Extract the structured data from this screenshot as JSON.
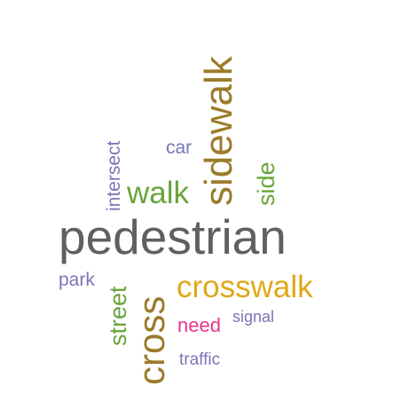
{
  "words": {
    "pedestrian": {
      "text": "pedestrian",
      "color": "#5f6064"
    },
    "sidewalk": {
      "text": "sidewalk",
      "color": "#9b7b2a"
    },
    "crosswalk": {
      "text": "crosswalk",
      "color": "#e0a818"
    },
    "cross": {
      "text": "cross",
      "color": "#9b7b2a"
    },
    "walk": {
      "text": "walk",
      "color": "#68a43a"
    },
    "street": {
      "text": "street",
      "color": "#68a43a"
    },
    "side": {
      "text": "side",
      "color": "#68a43a"
    },
    "intersect": {
      "text": "intersect",
      "color": "#7a76b8"
    },
    "car": {
      "text": "car",
      "color": "#7a76b8"
    },
    "park": {
      "text": "park",
      "color": "#7a76b8"
    },
    "need": {
      "text": "need",
      "color": "#e8348b"
    },
    "signal": {
      "text": "signal",
      "color": "#7a76b8"
    },
    "traffic": {
      "text": "traffic",
      "color": "#7a76b8"
    }
  }
}
